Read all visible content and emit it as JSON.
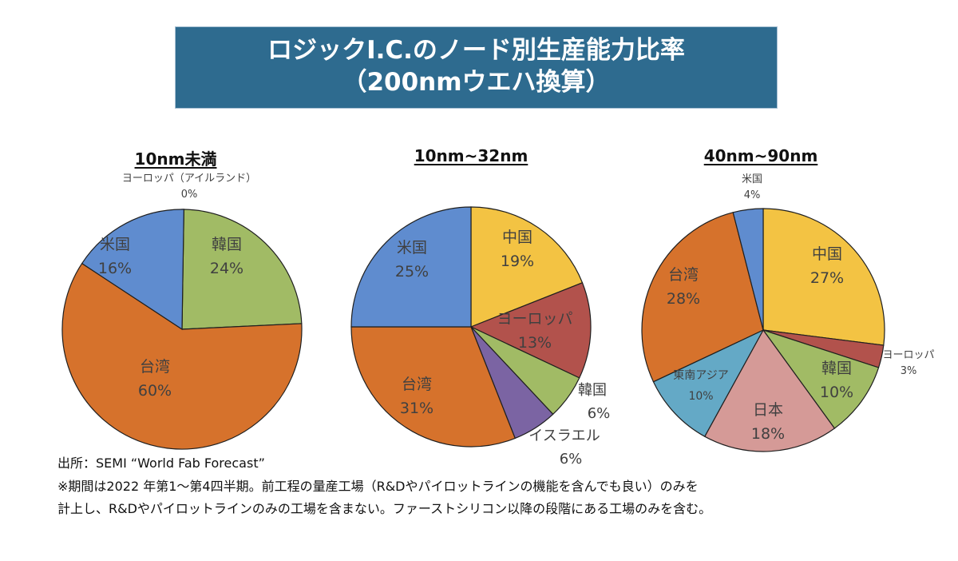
{
  "title": {
    "line1": "ロジックI.C.のノード別生産能力比率",
    "line2": "（200nmウエハ換算）",
    "box_color": "#2e6b8f"
  },
  "chart_data": [
    {
      "type": "pie",
      "title": "10nm未満",
      "start": "12 o'clock, clockwise",
      "slices": [
        {
          "label": "ヨーロッパ（アイルランド）",
          "value": 0,
          "display": "0%",
          "color": "#2f4a7a",
          "label_position": "outside"
        },
        {
          "label": "韓国",
          "value": 24,
          "display": "24%",
          "color": "#a1bb65",
          "label_position": "inside"
        },
        {
          "label": "台湾",
          "value": 60,
          "display": "60%",
          "color": "#d6722c",
          "label_position": "inside"
        },
        {
          "label": "米国",
          "value": 16,
          "display": "16%",
          "color": "#5f8ccf",
          "label_position": "inside"
        }
      ]
    },
    {
      "type": "pie",
      "title": "10nm~32nm",
      "start": "12 o'clock, clockwise",
      "slices": [
        {
          "label": "中国",
          "value": 19,
          "display": "19%",
          "color": "#f3c343",
          "label_position": "inside"
        },
        {
          "label": "ヨーロッパ",
          "value": 13,
          "display": "13%",
          "color": "#b2524c",
          "label_position": "inside"
        },
        {
          "label": "韓国",
          "value": 6,
          "display": "6%",
          "color": "#a1bb65",
          "label_position": "outside"
        },
        {
          "label": "イスラエル",
          "value": 6,
          "display": "6%",
          "color": "#7b64a3",
          "label_position": "outside"
        },
        {
          "label": "台湾",
          "value": 31,
          "display": "31%",
          "color": "#d6722c",
          "label_position": "inside"
        },
        {
          "label": "米国",
          "value": 25,
          "display": "25%",
          "color": "#5f8ccf",
          "label_position": "inside"
        }
      ]
    },
    {
      "type": "pie",
      "title": "40nm~90nm",
      "start": "12 o'clock, clockwise",
      "slices": [
        {
          "label": "中国",
          "value": 27,
          "display": "27%",
          "color": "#f3c343",
          "label_position": "inside"
        },
        {
          "label": "ヨーロッパ",
          "value": 3,
          "display": "3%",
          "color": "#b2524c",
          "label_position": "outside"
        },
        {
          "label": "韓国",
          "value": 10,
          "display": "10%",
          "color": "#a1bb65",
          "label_position": "inside"
        },
        {
          "label": "日本",
          "value": 18,
          "display": "18%",
          "color": "#d59a97",
          "label_position": "inside"
        },
        {
          "label": "東南アジア",
          "value": 10,
          "display": "10%",
          "color": "#64a9c6",
          "label_position": "inside"
        },
        {
          "label": "台湾",
          "value": 28,
          "display": "28%",
          "color": "#d6722c",
          "label_position": "inside"
        },
        {
          "label": "米国",
          "value": 4,
          "display": "4%",
          "color": "#5f8ccf",
          "label_position": "outside"
        }
      ]
    }
  ],
  "footer": {
    "source": "出所：SEMI “World Fab Forecast”",
    "note_line1": "※期間は2022 年第1～第4四半期。前工程の量産工場（R&Dやパイロットラインの機能を含んでも良い）のみを",
    "note_line2": "計上し、R&Dやパイロットラインのみの工場を含まない。ファーストシリコン以降の段階にある工場のみを含む。"
  }
}
